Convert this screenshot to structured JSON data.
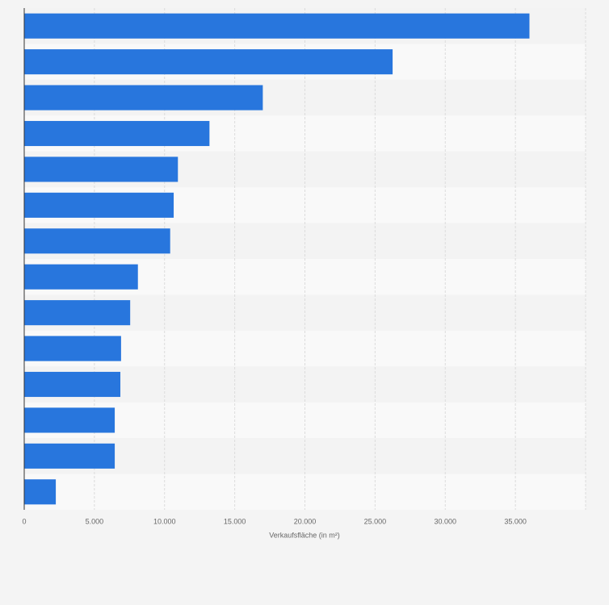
{
  "chart_data": {
    "type": "bar",
    "orientation": "horizontal",
    "categories": [
      null,
      null,
      null,
      null,
      null,
      null,
      null,
      null,
      null,
      null,
      null,
      null,
      null,
      null
    ],
    "values": [
      36000,
      26250,
      17000,
      13200,
      10950,
      10650,
      10400,
      8100,
      7550,
      6900,
      6850,
      6450,
      6450,
      2250
    ],
    "color": "#2876dd",
    "xlabel": "Verkaufsfläche (in m²)",
    "xlim": [
      0,
      40000
    ],
    "xticks": [
      0,
      {
        "value": 5000,
        "label": "5.000"
      },
      {
        "value": 10000,
        "label": "10.000"
      },
      {
        "value": 15000,
        "label": "15.000"
      },
      {
        "value": 20000,
        "label": "20.000"
      },
      {
        "value": 25000,
        "label": "25.000"
      },
      {
        "value": 30000,
        "label": "30.000"
      },
      {
        "value": 35000,
        "label": "35.000"
      }
    ],
    "grid": true
  }
}
